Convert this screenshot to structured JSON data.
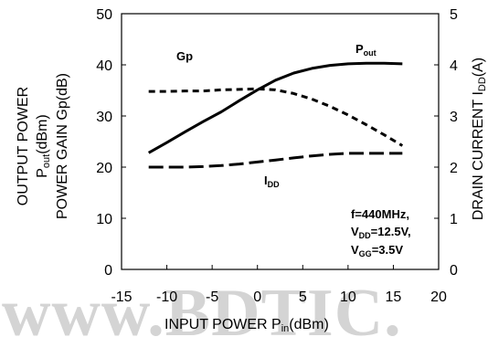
{
  "chart_data": {
    "type": "line",
    "xlabel": {
      "main": "INPUT POWER P",
      "sub": "in",
      "unit": "(dBm)"
    },
    "ylabel_left": [
      {
        "main": "OUTPUT POWER",
        "sub": "",
        "unit": ""
      },
      {
        "main": "P",
        "sub": "out",
        "unit": "(dBm)"
      },
      {
        "main": "POWER GAIN Gp(dB)",
        "sub": "",
        "unit": ""
      }
    ],
    "ylabel_right": {
      "main": "DRAIN CURRENT I",
      "sub": "DD",
      "unit": "(A)"
    },
    "xlim": [
      -15,
      20
    ],
    "ylim_left": [
      0,
      50
    ],
    "ylim_right": [
      0,
      5
    ],
    "x_ticks": [
      "-15",
      "-10",
      "-5",
      "0",
      "5",
      "10",
      "15",
      "20"
    ],
    "y_left_ticks": [
      "0",
      "10",
      "20",
      "30",
      "40",
      "50"
    ],
    "y_right_ticks": [
      "0",
      "1",
      "2",
      "3",
      "4",
      "5"
    ],
    "grid": false,
    "series": [
      {
        "name": "P",
        "name_sub": "out",
        "style": "solid",
        "axis": "left",
        "x": [
          -12,
          -10,
          -8,
          -6,
          -4,
          -2,
          0,
          2,
          4,
          6,
          8,
          10,
          12,
          14,
          16
        ],
        "y": [
          22.8,
          24.8,
          26.9,
          28.9,
          30.8,
          33,
          35.1,
          37,
          38.4,
          39.3,
          39.9,
          40.2,
          40.3,
          40.3,
          40.2
        ]
      },
      {
        "name": "Gp",
        "name_sub": "",
        "style": "dashed",
        "axis": "left",
        "x": [
          -12,
          -10,
          -8,
          -6,
          -4,
          -2,
          0,
          2,
          4,
          6,
          8,
          10,
          12,
          14,
          16
        ],
        "y": [
          34.8,
          34.8,
          34.9,
          34.9,
          35.1,
          35.2,
          35.3,
          35.1,
          34.4,
          33.3,
          31.9,
          30.2,
          28.3,
          26.3,
          24.2
        ]
      },
      {
        "name": "I",
        "name_sub": "DD",
        "style": "long-dash",
        "axis": "right",
        "x": [
          -12,
          -10,
          -8,
          -6,
          -4,
          -2,
          0,
          2,
          4,
          6,
          8,
          10,
          12,
          14,
          16
        ],
        "y": [
          2.0,
          2.0,
          2.0,
          2.01,
          2.03,
          2.06,
          2.1,
          2.14,
          2.18,
          2.22,
          2.25,
          2.27,
          2.27,
          2.27,
          2.27
        ]
      }
    ],
    "conditions": [
      {
        "main": "f=440MHz,",
        "sub": "",
        "rest": ""
      },
      {
        "main": "V",
        "sub": "DD",
        "rest": "=12.5V,"
      },
      {
        "main": "V",
        "sub": "GG",
        "rest": "=3.5V"
      }
    ]
  },
  "watermark": "www.BDTIC."
}
